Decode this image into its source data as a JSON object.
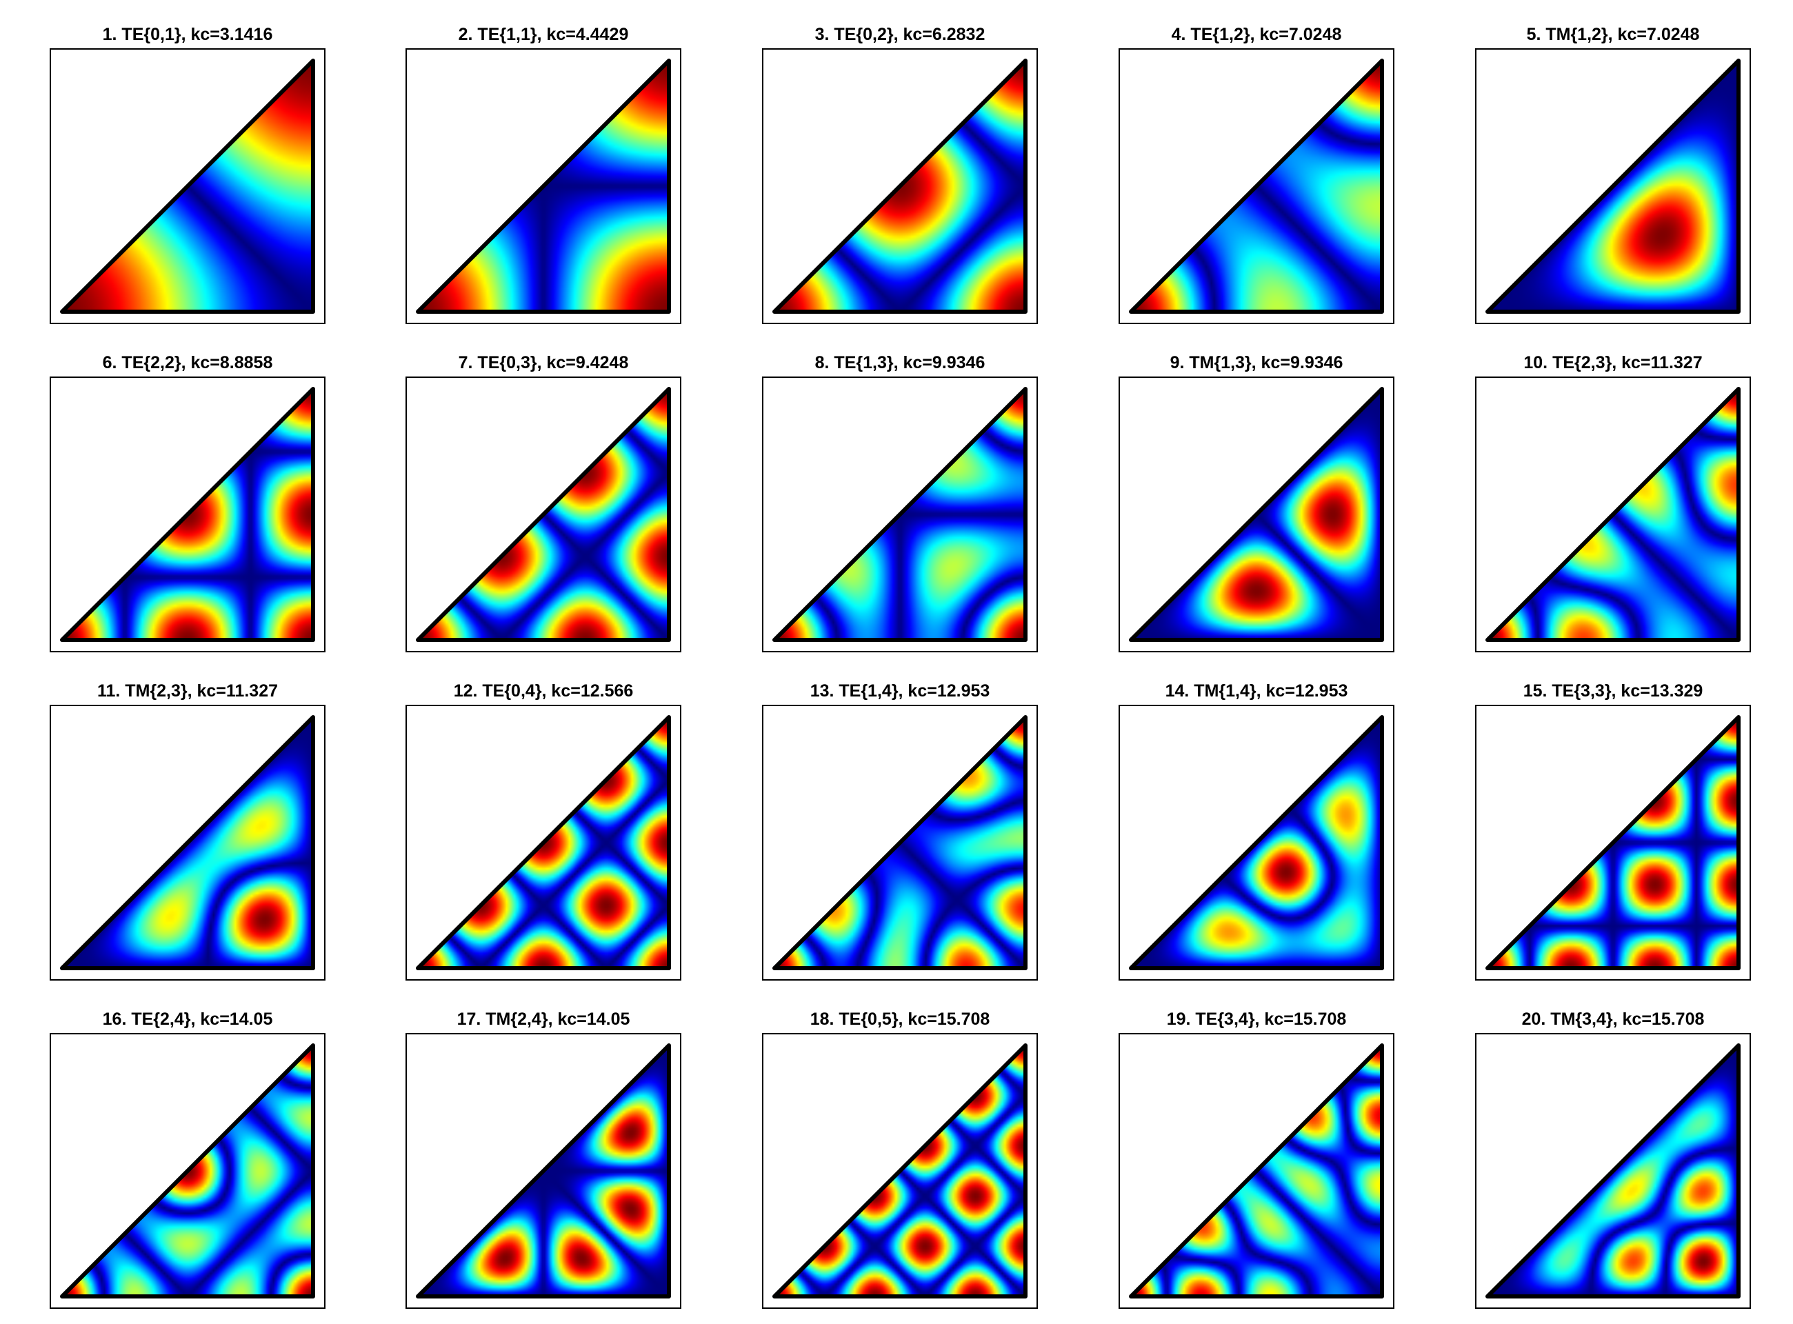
{
  "chart_data": [
    {
      "type": "heatmap",
      "title": "1. TE{0,1}, kc=3.1416",
      "mode": "TE",
      "m": 0,
      "n": 1,
      "kc": 3.1416
    },
    {
      "type": "heatmap",
      "title": "2. TE{1,1}, kc=4.4429",
      "mode": "TE",
      "m": 1,
      "n": 1,
      "kc": 4.4429
    },
    {
      "type": "heatmap",
      "title": "3. TE{0,2}, kc=6.2832",
      "mode": "TE",
      "m": 0,
      "n": 2,
      "kc": 6.2832
    },
    {
      "type": "heatmap",
      "title": "4. TE{1,2}, kc=7.0248",
      "mode": "TE",
      "m": 1,
      "n": 2,
      "kc": 7.0248
    },
    {
      "type": "heatmap",
      "title": "5. TM{1,2}, kc=7.0248",
      "mode": "TM",
      "m": 1,
      "n": 2,
      "kc": 7.0248
    },
    {
      "type": "heatmap",
      "title": "6. TE{2,2}, kc=8.8858",
      "mode": "TE",
      "m": 2,
      "n": 2,
      "kc": 8.8858
    },
    {
      "type": "heatmap",
      "title": "7. TE{0,3}, kc=9.4248",
      "mode": "TE",
      "m": 0,
      "n": 3,
      "kc": 9.4248
    },
    {
      "type": "heatmap",
      "title": "8. TE{1,3}, kc=9.9346",
      "mode": "TE",
      "m": 1,
      "n": 3,
      "kc": 9.9346
    },
    {
      "type": "heatmap",
      "title": "9. TM{1,3}, kc=9.9346",
      "mode": "TM",
      "m": 1,
      "n": 3,
      "kc": 9.9346
    },
    {
      "type": "heatmap",
      "title": "10. TE{2,3}, kc=11.327",
      "mode": "TE",
      "m": 2,
      "n": 3,
      "kc": 11.327
    },
    {
      "type": "heatmap",
      "title": "11. TM{2,3}, kc=11.327",
      "mode": "TM",
      "m": 2,
      "n": 3,
      "kc": 11.327
    },
    {
      "type": "heatmap",
      "title": "12. TE{0,4}, kc=12.566",
      "mode": "TE",
      "m": 0,
      "n": 4,
      "kc": 12.566
    },
    {
      "type": "heatmap",
      "title": "13. TE{1,4}, kc=12.953",
      "mode": "TE",
      "m": 1,
      "n": 4,
      "kc": 12.953
    },
    {
      "type": "heatmap",
      "title": "14. TM{1,4}, kc=12.953",
      "mode": "TM",
      "m": 1,
      "n": 4,
      "kc": 12.953
    },
    {
      "type": "heatmap",
      "title": "15. TE{3,3}, kc=13.329",
      "mode": "TE",
      "m": 3,
      "n": 3,
      "kc": 13.329
    },
    {
      "type": "heatmap",
      "title": "16. TE{2,4}, kc=14.05",
      "mode": "TE",
      "m": 2,
      "n": 4,
      "kc": 14.05
    },
    {
      "type": "heatmap",
      "title": "17. TM{2,4}, kc=14.05",
      "mode": "TM",
      "m": 2,
      "n": 4,
      "kc": 14.05
    },
    {
      "type": "heatmap",
      "title": "18. TE{0,5}, kc=15.708",
      "mode": "TE",
      "m": 0,
      "n": 5,
      "kc": 15.708
    },
    {
      "type": "heatmap",
      "title": "19. TE{3,4}, kc=15.708",
      "mode": "TE",
      "m": 3,
      "n": 4,
      "kc": 15.708
    },
    {
      "type": "heatmap",
      "title": "20. TM{3,4}, kc=15.708",
      "mode": "TM",
      "m": 3,
      "n": 4,
      "kc": 15.708
    }
  ]
}
